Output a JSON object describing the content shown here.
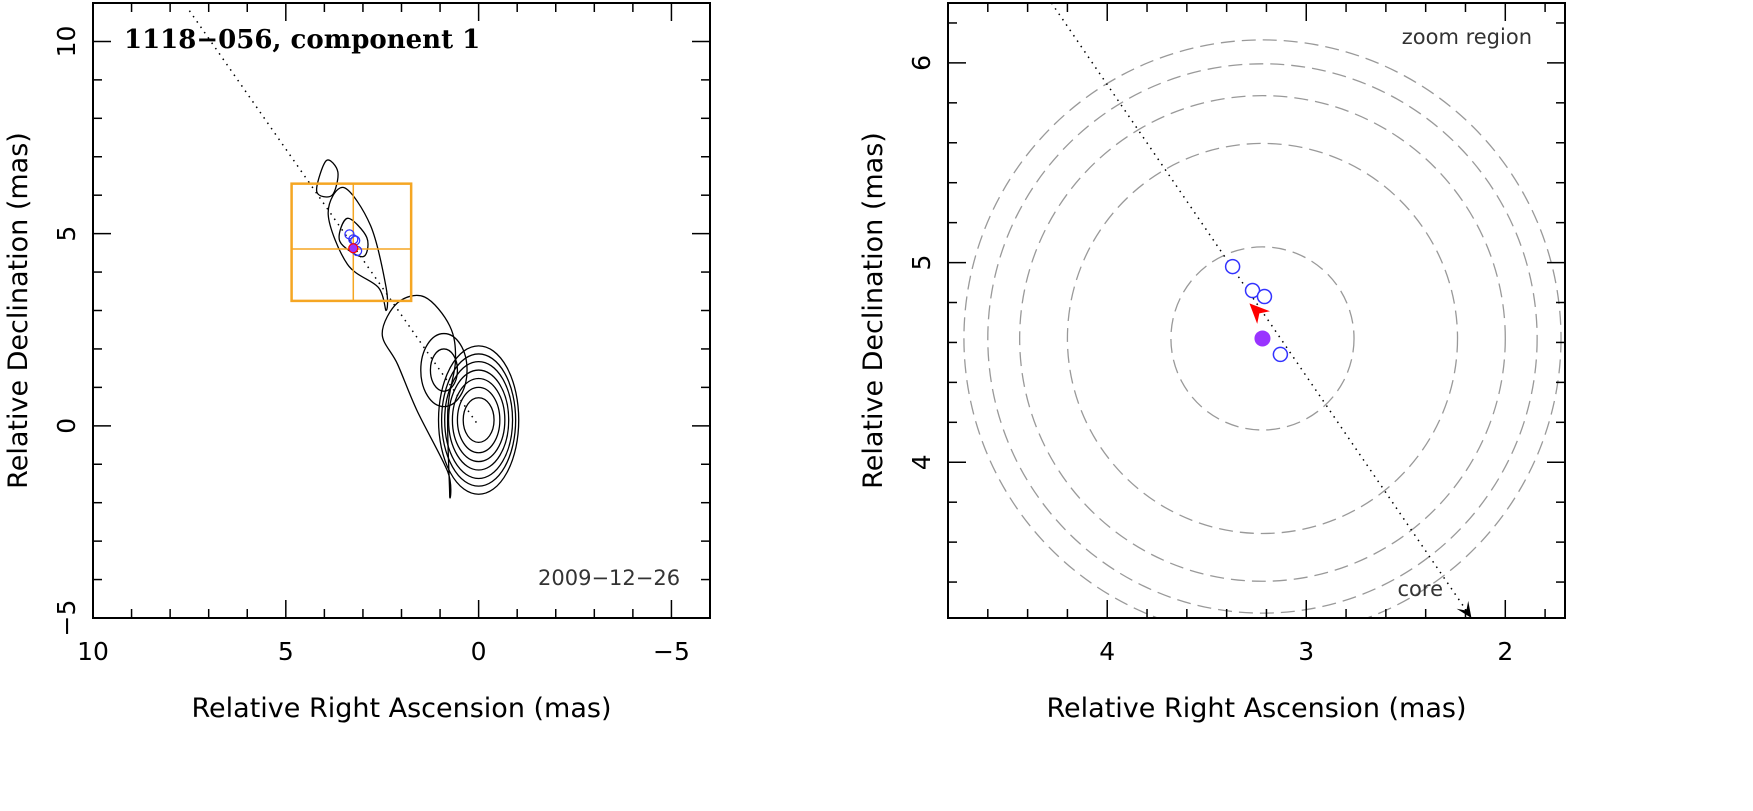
{
  "chart_data": [
    {
      "type": "scatter",
      "title": "1118−056, component 1",
      "date_label": "2009−12−26",
      "xlabel": "Relative Right Ascension (mas)",
      "ylabel": "Relative Declination (mas)",
      "xlim": [
        10,
        -6
      ],
      "ylim": [
        -5,
        11
      ],
      "x_major_ticks": [
        10,
        5,
        0,
        -5
      ],
      "x_tick_labels": [
        "10",
        "5",
        "0",
        "−5"
      ],
      "y_major_ticks": [
        -5,
        0,
        5,
        10
      ],
      "y_tick_labels": [
        "−5",
        "0",
        "5",
        "10"
      ],
      "trajectory_line": {
        "from": [
          7.5,
          10.8
        ],
        "to": [
          0,
          0
        ]
      },
      "zoom_box": {
        "x": [
          1.75,
          4.85
        ],
        "y": [
          3.25,
          6.3
        ],
        "cross": [
          3.25,
          4.6
        ]
      },
      "component_positions": [
        [
          3.35,
          4.98
        ],
        [
          3.25,
          4.85
        ],
        [
          3.2,
          4.82
        ],
        [
          3.15,
          4.55
        ]
      ],
      "mean_position": [
        3.25,
        4.62
      ],
      "contours": {
        "core_center": [
          0,
          0.15
        ],
        "core_radii": [
          [
            0.4,
            0.58
          ],
          [
            0.55,
            0.85
          ],
          [
            0.68,
            1.08
          ],
          [
            0.78,
            1.3
          ],
          [
            0.88,
            1.52
          ],
          [
            0.96,
            1.72
          ],
          [
            1.04,
            1.93
          ]
        ],
        "secondary_center": [
          0.9,
          1.45
        ],
        "secondary_radii": [
          [
            0.35,
            0.55
          ],
          [
            0.6,
            0.95
          ]
        ],
        "outer_envelope": [
          [
            0.75,
            -1.8
          ],
          [
            0.8,
            0.4
          ],
          [
            0.6,
            1.7
          ],
          [
            0.75,
            2.6
          ],
          [
            1.4,
            3.35
          ],
          [
            2.1,
            3.2
          ],
          [
            2.5,
            2.4
          ],
          [
            2.1,
            1.6
          ],
          [
            1.6,
            0.4
          ],
          [
            0.8,
            -1.2
          ]
        ],
        "jet_contour": [
          [
            2.4,
            3.0
          ],
          [
            2.6,
            3.6
          ],
          [
            3.4,
            4.2
          ],
          [
            3.9,
            5.5
          ],
          [
            3.5,
            6.2
          ],
          [
            2.8,
            5.2
          ],
          [
            2.4,
            3.6
          ]
        ],
        "inner_jet": [
          [
            3.0,
            4.4
          ],
          [
            3.6,
            4.8
          ],
          [
            3.4,
            5.4
          ],
          [
            2.9,
            4.9
          ]
        ],
        "upper_blob": [
          [
            3.8,
            6.0
          ],
          [
            4.2,
            6.1
          ],
          [
            3.95,
            6.9
          ],
          [
            3.65,
            6.6
          ]
        ]
      }
    },
    {
      "type": "scatter",
      "zoom_label": "zoom region",
      "core_label": "core",
      "xlabel": "Relative Right Ascension (mas)",
      "ylabel": "Relative Declination (mas)",
      "xlim": [
        4.8,
        1.7
      ],
      "ylim": [
        3.22,
        6.3
      ],
      "x_major_ticks": [
        4,
        3,
        2
      ],
      "x_tick_labels": [
        "4",
        "3",
        "2"
      ],
      "y_major_ticks": [
        4,
        5,
        6
      ],
      "y_tick_labels": [
        "4",
        "5",
        "6"
      ],
      "trajectory_line": {
        "from": [
          4.28,
          6.3
        ],
        "to": [
          2.17,
          3.22
        ]
      },
      "component_positions": [
        [
          3.37,
          4.98
        ],
        [
          3.27,
          4.86
        ],
        [
          3.21,
          4.83
        ],
        [
          3.13,
          4.54
        ]
      ],
      "mean_position": [
        3.22,
        4.62
      ],
      "motion_arrow": {
        "at": [
          3.25,
          4.76
        ],
        "direction": [
          -1,
          1
        ]
      },
      "uncertainty_circles": [
        {
          "center": [
            3.22,
            4.62
          ],
          "radius": 0.46
        },
        {
          "center": [
            3.22,
            4.62
          ],
          "radius": 0.98
        },
        {
          "center": [
            3.22,
            4.62
          ],
          "radius": 1.22
        },
        {
          "center": [
            3.22,
            4.62
          ],
          "radius": 1.38
        },
        {
          "center": [
            3.22,
            4.62
          ],
          "radius": 1.5
        }
      ],
      "colors": {
        "component": "#3333ff",
        "mean": "#9933ff",
        "arrow": "#ff0000",
        "circle": "#999999",
        "zoom_box": "#f5a623"
      }
    }
  ]
}
